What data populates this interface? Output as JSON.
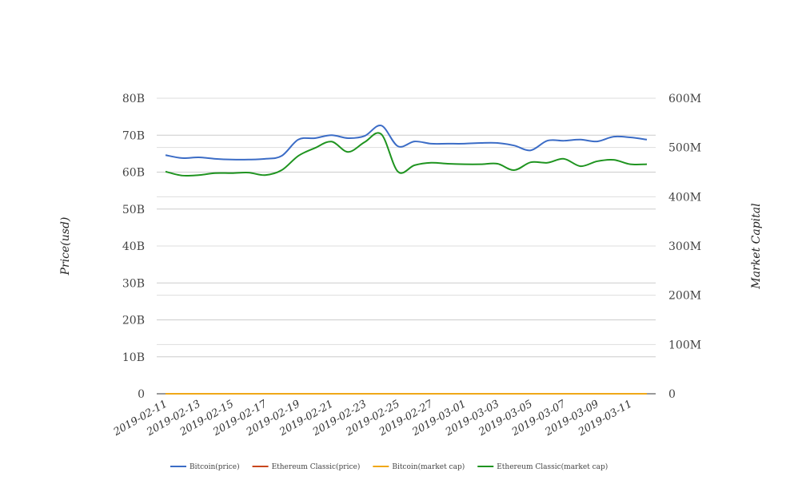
{
  "chart_data": {
    "type": "line",
    "y_left": {
      "label": "Price(usd)",
      "ticks": [
        "0",
        "10B",
        "20B",
        "30B",
        "40B",
        "50B",
        "60B",
        "70B",
        "80B"
      ],
      "range": [
        0,
        80
      ]
    },
    "y_right": {
      "label": "Market Capital",
      "ticks": [
        "0",
        "100M",
        "200M",
        "300M",
        "400M",
        "500M",
        "600M"
      ],
      "range": [
        0,
        600
      ]
    },
    "x_ticks": [
      "2019-02-11",
      "2019-02-13",
      "2019-02-15",
      "2019-02-17",
      "2019-02-19",
      "2019-02-21",
      "2019-02-23",
      "2019-02-25",
      "2019-02-27",
      "2019-03-01",
      "2019-03-03",
      "2019-03-05",
      "2019-03-07",
      "2019-03-09",
      "2019-03-11"
    ],
    "grid": true,
    "legend_position": "bottom",
    "series": [
      {
        "name": "Bitcoin(price)",
        "axis": "left",
        "color": "#3b6cc6",
        "values": [
          64.6,
          63.8,
          64.0,
          63.6,
          63.4,
          63.4,
          63.6,
          64.4,
          68.8,
          69.2,
          70.0,
          69.2,
          69.8,
          72.6,
          67.0,
          68.3,
          67.7,
          67.7,
          67.7,
          67.9,
          67.9,
          67.2,
          65.9,
          68.5,
          68.5,
          68.8,
          68.3,
          69.6,
          69.4,
          68.8
        ]
      },
      {
        "name": "Ethereum Classic(price)",
        "axis": "left",
        "color": "#c8461c",
        "values": [
          0,
          0,
          0,
          0,
          0,
          0,
          0,
          0,
          0,
          0,
          0,
          0,
          0,
          0,
          0,
          0,
          0,
          0,
          0,
          0,
          0,
          0,
          0,
          0,
          0,
          0,
          0,
          0,
          0,
          0
        ]
      },
      {
        "name": "Bitcoin(market cap)",
        "axis": "right",
        "color": "#f0a818",
        "values": [
          0,
          0,
          0,
          0,
          0,
          0,
          0,
          0,
          0,
          0,
          0,
          0,
          0,
          0,
          0,
          0,
          0,
          0,
          0,
          0,
          0,
          0,
          0,
          0,
          0,
          0,
          0,
          0,
          0,
          0
        ]
      },
      {
        "name": "Ethereum Classic(market cap)",
        "axis": "right",
        "color": "#1f9420",
        "values": [
          451,
          443,
          444,
          448,
          448,
          449,
          444,
          454,
          483,
          499,
          512,
          491,
          511,
          527,
          451,
          464,
          469,
          467,
          466,
          466,
          467,
          454,
          470,
          469,
          477,
          462,
          472,
          475,
          466,
          466
        ]
      }
    ]
  }
}
